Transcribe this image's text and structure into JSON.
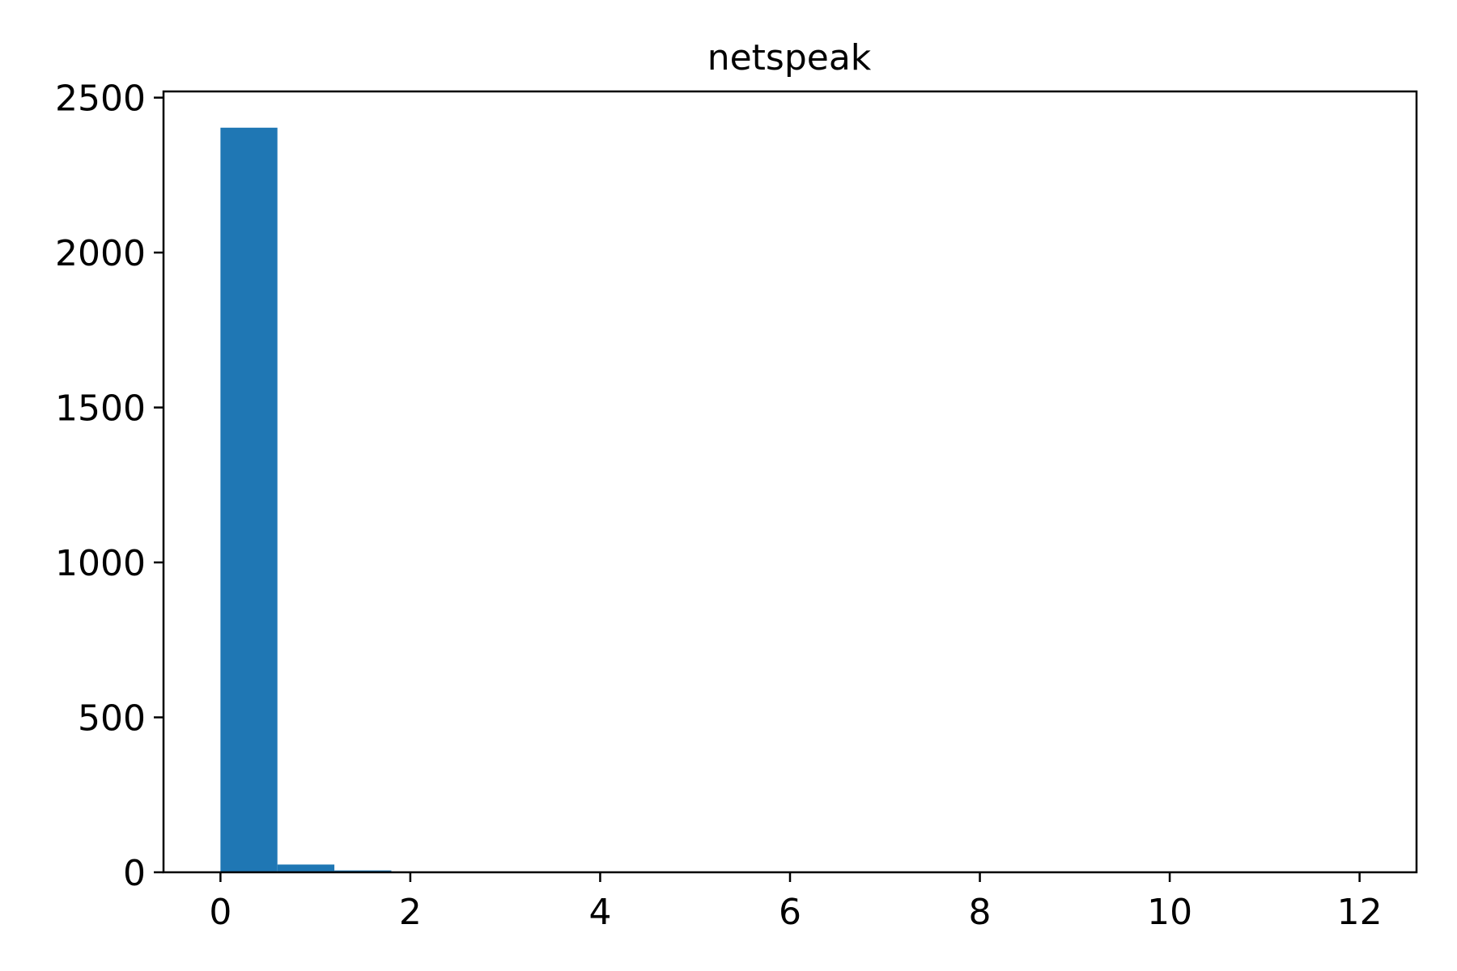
{
  "chart_data": {
    "type": "bar",
    "title": "netspeak",
    "xlabel": "",
    "ylabel": "",
    "histogram": true,
    "bin_width": 0.6,
    "bins": [
      {
        "x0": 0.0,
        "x1": 0.6,
        "count": 2403
      },
      {
        "x0": 0.6,
        "x1": 1.2,
        "count": 25
      },
      {
        "x0": 1.2,
        "x1": 1.8,
        "count": 6
      },
      {
        "x0": 1.8,
        "x1": 2.4,
        "count": 2
      },
      {
        "x0": 2.4,
        "x1": 3.0,
        "count": 1
      },
      {
        "x0": 3.0,
        "x1": 3.6,
        "count": 1
      },
      {
        "x0": 3.6,
        "x1": 4.2,
        "count": 0
      },
      {
        "x0": 4.2,
        "x1": 4.8,
        "count": 1
      },
      {
        "x0": 4.8,
        "x1": 5.4,
        "count": 0
      },
      {
        "x0": 5.4,
        "x1": 6.0,
        "count": 0
      },
      {
        "x0": 6.0,
        "x1": 6.6,
        "count": 0
      },
      {
        "x0": 6.6,
        "x1": 7.2,
        "count": 0
      },
      {
        "x0": 7.2,
        "x1": 7.8,
        "count": 0
      },
      {
        "x0": 7.8,
        "x1": 8.4,
        "count": 0
      },
      {
        "x0": 8.4,
        "x1": 9.0,
        "count": 0
      },
      {
        "x0": 9.0,
        "x1": 9.6,
        "count": 0
      },
      {
        "x0": 9.6,
        "x1": 10.2,
        "count": 0
      },
      {
        "x0": 10.2,
        "x1": 10.8,
        "count": 0
      },
      {
        "x0": 10.8,
        "x1": 11.4,
        "count": 0
      },
      {
        "x0": 11.4,
        "x1": 12.0,
        "count": 1
      }
    ],
    "xlim": [
      -0.6,
      12.6
    ],
    "ylim": [
      0,
      2520
    ],
    "xticks": [
      0,
      2,
      4,
      6,
      8,
      10,
      12
    ],
    "yticks": [
      0,
      500,
      1000,
      1500,
      2000,
      2500
    ],
    "bar_color": "#1f77b4",
    "grid": false,
    "legend": "none"
  }
}
